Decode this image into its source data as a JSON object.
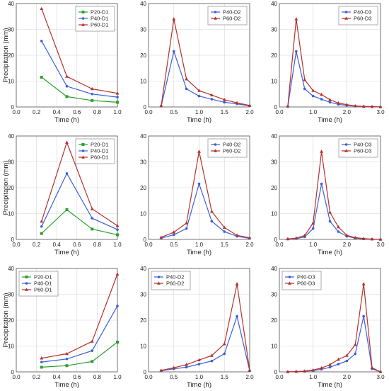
{
  "colors": {
    "P20": "#2ca02c",
    "P40": "#3b5fd9",
    "P60": "#b5302a",
    "grid": "#d6d6d6",
    "frame": "#555555"
  },
  "chart_data": [
    {
      "type": "line",
      "panel": "row1-col1",
      "xlabel": "Time (h)",
      "ylabel": "Precipitation (mm)",
      "xlim": [
        0,
        1.0
      ],
      "ylim": [
        0,
        40
      ],
      "xticks": [
        "0.0",
        "0.2",
        "0.4",
        "0.6",
        "0.8",
        "1.0"
      ],
      "yticks": [
        "0",
        "10",
        "20",
        "30",
        "40"
      ],
      "grid": true,
      "legend_position": "top-right",
      "x": [
        0.25,
        0.5,
        0.75,
        1.0
      ],
      "series": [
        {
          "name": "P20-D1",
          "color": "#2ca02c",
          "marker": "square",
          "values": [
            11.5,
            4.0,
            2.5,
            1.8
          ]
        },
        {
          "name": "P40-D1",
          "color": "#3b5fd9",
          "marker": "dot",
          "values": [
            25.5,
            8.0,
            5.0,
            3.8
          ]
        },
        {
          "name": "P60-D1",
          "color": "#b5302a",
          "marker": "triangle",
          "values": [
            38.0,
            11.8,
            7.0,
            5.3
          ]
        }
      ]
    },
    {
      "type": "line",
      "panel": "row1-col2",
      "xlabel": "Time (h)",
      "ylabel": "",
      "xlim": [
        0,
        2.0
      ],
      "ylim": [
        0,
        40
      ],
      "xticks": [
        "0.0",
        "0.5",
        "1.0",
        "1.5",
        "2.0"
      ],
      "yticks": [
        "0",
        "10",
        "20",
        "30",
        "40"
      ],
      "grid": true,
      "legend_position": "top-right",
      "x": [
        0.25,
        0.5,
        0.75,
        1.0,
        1.25,
        1.5,
        1.75,
        2.0
      ],
      "series": [
        {
          "name": "P40-D2",
          "color": "#3b5fd9",
          "marker": "dot",
          "values": [
            0.3,
            21.5,
            7.0,
            4.2,
            3.0,
            1.8,
            1.2,
            0.4
          ]
        },
        {
          "name": "P60-D2",
          "color": "#b5302a",
          "marker": "triangle",
          "values": [
            0.4,
            34.0,
            10.8,
            6.3,
            4.6,
            2.8,
            1.6,
            0.6
          ]
        }
      ]
    },
    {
      "type": "line",
      "panel": "row1-col3",
      "xlabel": "Time (h)",
      "ylabel": "",
      "xlim": [
        0,
        3.0
      ],
      "ylim": [
        0,
        40
      ],
      "xticks": [
        "0.0",
        "1.0",
        "2.0",
        "3.0"
      ],
      "yticks": [
        "0",
        "10",
        "20",
        "30",
        "40"
      ],
      "grid": true,
      "legend_position": "top-right",
      "x": [
        0.25,
        0.5,
        0.75,
        1.0,
        1.25,
        1.5,
        1.75,
        2.0,
        2.25,
        2.5,
        2.75,
        3.0
      ],
      "series": [
        {
          "name": "P40-D3",
          "color": "#3b5fd9",
          "marker": "dot",
          "values": [
            0.2,
            21.5,
            7.0,
            4.2,
            3.0,
            1.8,
            1.0,
            0.6,
            0.3,
            0.2,
            0.1,
            0.0
          ]
        },
        {
          "name": "P60-D3",
          "color": "#b5302a",
          "marker": "triangle",
          "values": [
            0.3,
            34.0,
            10.5,
            6.3,
            4.8,
            2.8,
            1.5,
            0.9,
            0.4,
            0.2,
            0.1,
            0.0
          ]
        }
      ]
    },
    {
      "type": "line",
      "panel": "row2-col1",
      "xlabel": "Time (h)",
      "ylabel": "Precipitation (mm)",
      "xlim": [
        0,
        1.0
      ],
      "ylim": [
        0,
        40
      ],
      "xticks": [
        "0.0",
        "0.2",
        "0.4",
        "0.6",
        "0.8",
        "1.0"
      ],
      "yticks": [
        "0",
        "10",
        "20",
        "30",
        "40"
      ],
      "grid": true,
      "legend_position": "top-right",
      "x": [
        0.25,
        0.5,
        0.75,
        1.0
      ],
      "series": [
        {
          "name": "P20-D1",
          "color": "#2ca02c",
          "marker": "square",
          "values": [
            2.3,
            11.5,
            4.0,
            1.8
          ]
        },
        {
          "name": "P40-D1",
          "color": "#3b5fd9",
          "marker": "dot",
          "values": [
            5.0,
            25.5,
            8.2,
            3.8
          ]
        },
        {
          "name": "P60-D1",
          "color": "#b5302a",
          "marker": "triangle",
          "values": [
            7.0,
            37.5,
            11.8,
            5.3
          ]
        }
      ]
    },
    {
      "type": "line",
      "panel": "row2-col2",
      "xlabel": "Time (h)",
      "ylabel": "",
      "xlim": [
        0,
        2.0
      ],
      "ylim": [
        0,
        40
      ],
      "xticks": [
        "0.0",
        "0.5",
        "1.0",
        "1.5",
        "2.0"
      ],
      "yticks": [
        "0",
        "10",
        "20",
        "30",
        "40"
      ],
      "grid": true,
      "legend_position": "top-right",
      "x": [
        0.25,
        0.5,
        0.75,
        1.0,
        1.25,
        1.5,
        1.75,
        2.0
      ],
      "series": [
        {
          "name": "P40-D2",
          "color": "#3b5fd9",
          "marker": "dot",
          "values": [
            0.5,
            1.8,
            4.2,
            21.5,
            7.0,
            3.0,
            1.2,
            0.4
          ]
        },
        {
          "name": "P60-D2",
          "color": "#b5302a",
          "marker": "triangle",
          "values": [
            0.8,
            2.8,
            6.3,
            34.0,
            10.8,
            4.6,
            1.6,
            0.6
          ]
        }
      ]
    },
    {
      "type": "line",
      "panel": "row2-col3",
      "xlabel": "Time (h)",
      "ylabel": "",
      "xlim": [
        0,
        3.0
      ],
      "ylim": [
        0,
        40
      ],
      "xticks": [
        "0.0",
        "1.0",
        "2.0",
        "3.0"
      ],
      "yticks": [
        "0",
        "10",
        "20",
        "30",
        "40"
      ],
      "grid": true,
      "legend_position": "top-right",
      "x": [
        0.25,
        0.5,
        0.75,
        1.0,
        1.25,
        1.5,
        1.75,
        2.0,
        2.25,
        2.5,
        2.75,
        3.0
      ],
      "series": [
        {
          "name": "P40-D3",
          "color": "#3b5fd9",
          "marker": "dot",
          "values": [
            0.1,
            0.3,
            1.0,
            4.2,
            21.5,
            7.0,
            3.0,
            1.2,
            0.5,
            0.2,
            0.1,
            0.0
          ]
        },
        {
          "name": "P60-D3",
          "color": "#b5302a",
          "marker": "triangle",
          "values": [
            0.2,
            0.5,
            1.5,
            6.3,
            34.0,
            10.5,
            4.8,
            1.6,
            0.7,
            0.3,
            0.1,
            0.0
          ]
        }
      ]
    },
    {
      "type": "line",
      "panel": "row3-col1",
      "xlabel": "Time (h)",
      "ylabel": "Precipitation (mm)",
      "xlim": [
        0,
        1.0
      ],
      "ylim": [
        0,
        40
      ],
      "xticks": [
        "0.0",
        "0.2",
        "0.4",
        "0.6",
        "0.8",
        "1.0"
      ],
      "yticks": [
        "0",
        "10",
        "20",
        "30",
        "40"
      ],
      "grid": true,
      "legend_position": "top-left",
      "x": [
        0.25,
        0.5,
        0.75,
        1.0
      ],
      "series": [
        {
          "name": "P20-D1",
          "color": "#2ca02c",
          "marker": "square",
          "values": [
            1.8,
            2.4,
            4.0,
            11.5
          ]
        },
        {
          "name": "P40-D1",
          "color": "#3b5fd9",
          "marker": "dot",
          "values": [
            3.8,
            5.0,
            8.2,
            25.5
          ]
        },
        {
          "name": "P60-D1",
          "color": "#b5302a",
          "marker": "triangle",
          "values": [
            5.3,
            7.0,
            11.8,
            37.8
          ]
        }
      ]
    },
    {
      "type": "line",
      "panel": "row3-col2",
      "xlabel": "Time (h)",
      "ylabel": "",
      "xlim": [
        0,
        2.0
      ],
      "ylim": [
        0,
        40
      ],
      "xticks": [
        "0.0",
        "0.5",
        "1.0",
        "1.5",
        "2.0"
      ],
      "yticks": [
        "0",
        "10",
        "20",
        "30",
        "40"
      ],
      "grid": true,
      "legend_position": "top-left",
      "x": [
        0.25,
        0.5,
        0.75,
        1.0,
        1.25,
        1.5,
        1.75,
        2.0
      ],
      "series": [
        {
          "name": "P40-D2",
          "color": "#3b5fd9",
          "marker": "dot",
          "values": [
            0.4,
            1.2,
            1.8,
            3.0,
            4.2,
            7.0,
            21.5,
            0.4
          ]
        },
        {
          "name": "P60-D2",
          "color": "#b5302a",
          "marker": "triangle",
          "values": [
            0.6,
            1.6,
            2.8,
            4.6,
            6.3,
            10.8,
            34.0,
            0.6
          ]
        }
      ]
    },
    {
      "type": "line",
      "panel": "row3-col3",
      "xlabel": "Time (h)",
      "ylabel": "",
      "xlim": [
        0,
        3.0
      ],
      "ylim": [
        0,
        40
      ],
      "xticks": [
        "0.0",
        "1.0",
        "2.0",
        "3.0"
      ],
      "yticks": [
        "0",
        "10",
        "20",
        "30",
        "40"
      ],
      "grid": true,
      "legend_position": "top-left",
      "x": [
        0.25,
        0.5,
        0.75,
        1.0,
        1.25,
        1.5,
        1.75,
        2.0,
        2.25,
        2.5,
        2.75,
        3.0
      ],
      "series": [
        {
          "name": "P40-D3",
          "color": "#3b5fd9",
          "marker": "dot",
          "values": [
            0.0,
            0.1,
            0.2,
            0.5,
            1.0,
            1.8,
            3.0,
            4.2,
            7.0,
            21.5,
            1.2,
            0.0
          ]
        },
        {
          "name": "P60-D3",
          "color": "#b5302a",
          "marker": "triangle",
          "values": [
            0.0,
            0.1,
            0.3,
            0.7,
            1.5,
            2.8,
            4.8,
            6.3,
            10.5,
            34.0,
            1.6,
            0.0
          ]
        }
      ]
    }
  ]
}
